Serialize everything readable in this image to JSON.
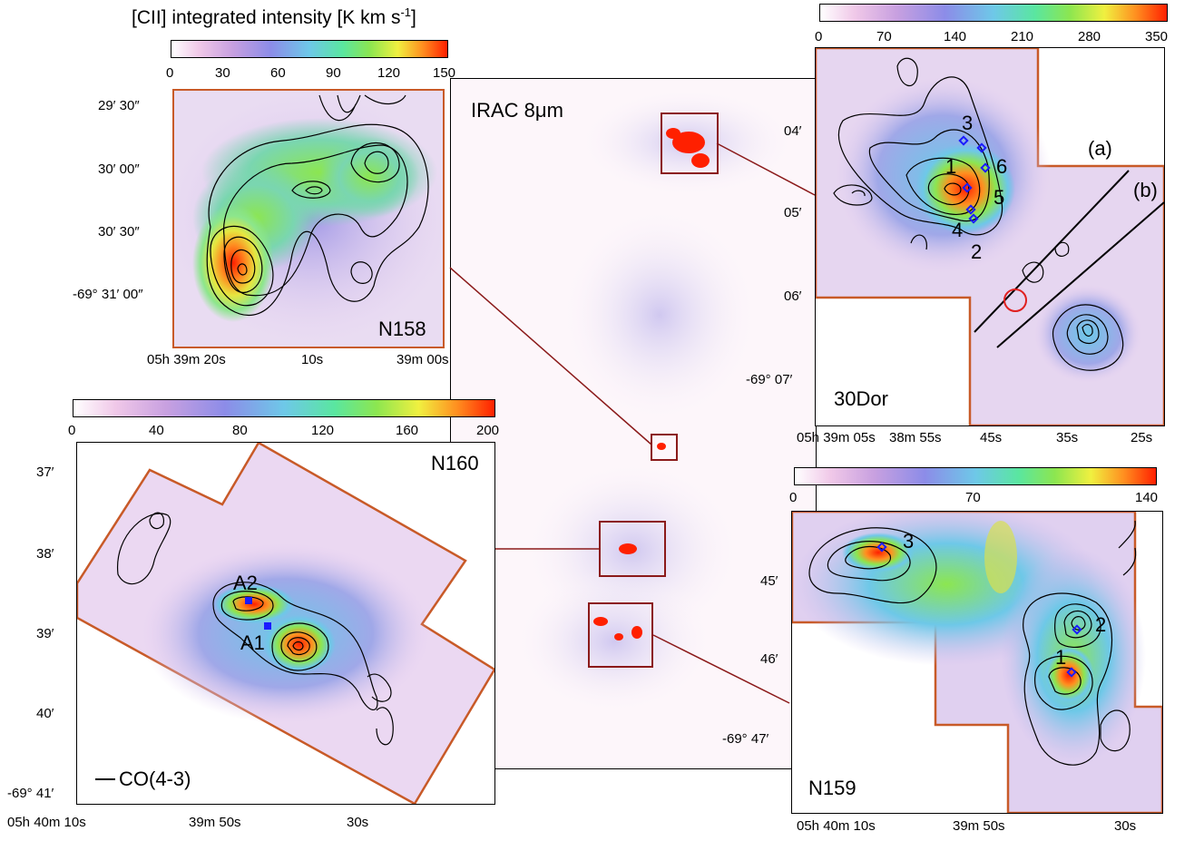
{
  "colorbar_title": "[CII] integrated intensity [K km s",
  "colorbar_title_sup": "-1",
  "colorbar_title_end": "]",
  "n158": {
    "ticks": [
      "0",
      "30",
      "60",
      "90",
      "120",
      "150"
    ],
    "name": "N158",
    "dec_labels": [
      "29′ 30″",
      "30′ 00″",
      "30′ 30″",
      "-69° 31′ 00″"
    ],
    "ra_labels": [
      "05h 39m 20s",
      "10s",
      "39m 00s"
    ]
  },
  "dor30": {
    "ticks": [
      "0",
      "70",
      "140",
      "210",
      "280",
      "350"
    ],
    "name": "30Dor",
    "region_a": "(a)",
    "region_b": "(b)",
    "dec_labels": [
      "04′",
      "05′",
      "06′",
      "-69° 07′"
    ],
    "ra_labels": [
      "05h 39m 05s",
      "38m 55s",
      "45s",
      "35s",
      "25s"
    ],
    "sources": [
      "1",
      "2",
      "3",
      "4",
      "5",
      "6"
    ]
  },
  "irac": {
    "label": "IRAC 8μm"
  },
  "n160": {
    "ticks": [
      "0",
      "40",
      "80",
      "120",
      "160",
      "200"
    ],
    "name": "N160",
    "dec_labels": [
      "37′",
      "38′",
      "39′",
      "40′",
      "-69° 41′"
    ],
    "ra_labels": [
      "05h 40m 10s",
      "39m 50s",
      "30s"
    ],
    "sources": [
      "A2",
      "A1"
    ],
    "legend": "CO(4-3)"
  },
  "n159": {
    "ticks": [
      "0",
      "70",
      "140"
    ],
    "name": "N159",
    "dec_labels": [
      "45′",
      "46′",
      "-69° 47′"
    ],
    "ra_labels": [
      "05h 40m 10s",
      "39m 50s",
      "30s"
    ],
    "sources": [
      "3",
      "2",
      "1"
    ]
  },
  "colors": {
    "panel_border": "#c85a28",
    "zoom_line": "#8b1a1a",
    "contour": "#000000",
    "marker": "#1a1aff",
    "circle": "#e02020"
  }
}
